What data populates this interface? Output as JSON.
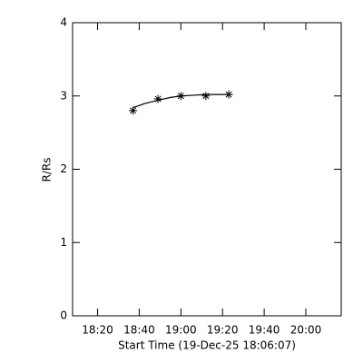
{
  "chart_data": {
    "type": "line",
    "x_label": "Start Time (19-Dec-25 18:06:07)",
    "y_label": "R/Rs",
    "xlim": [
      1088,
      1217
    ],
    "xticks": [
      {
        "value": 1100,
        "label": "18:20"
      },
      {
        "value": 1120,
        "label": "18:40"
      },
      {
        "value": 1140,
        "label": "19:00"
      },
      {
        "value": 1160,
        "label": "19:20"
      },
      {
        "value": 1180,
        "label": "19:40"
      },
      {
        "value": 1200,
        "label": "20:00"
      }
    ],
    "ylim": [
      0,
      4
    ],
    "yticks": [
      0,
      1,
      2,
      3,
      4
    ],
    "color": "#000000",
    "series": [
      {
        "marker": "asterisk",
        "x": [
          1117,
          1129,
          1140,
          1152,
          1163
        ],
        "values": [
          2.8,
          2.96,
          3.0,
          3.0,
          3.02
        ]
      },
      {
        "marker": "none",
        "x": [
          1117,
          1123,
          1129,
          1135,
          1140,
          1146,
          1152,
          1158,
          1163
        ],
        "values": [
          2.84,
          2.9,
          2.94,
          2.98,
          3.0,
          3.01,
          3.02,
          3.02,
          3.02
        ]
      }
    ]
  }
}
